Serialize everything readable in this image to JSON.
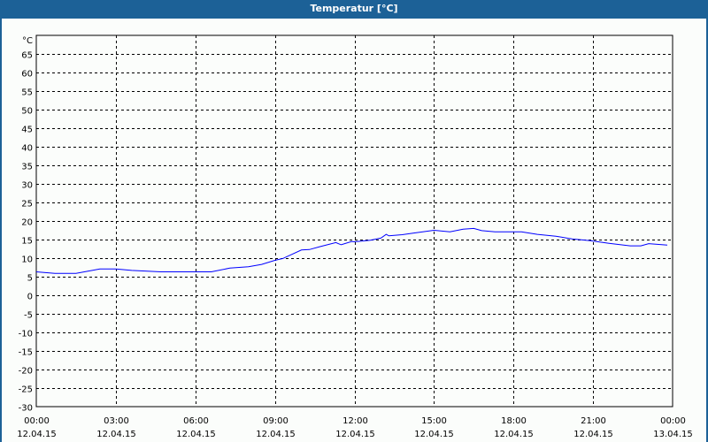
{
  "window": {
    "title": "Temperatur [°C]"
  },
  "chart_data": {
    "type": "line",
    "title": "Temperatur [°C]",
    "ylabel": "°C",
    "xlabel": "",
    "ylim": [
      -30,
      70
    ],
    "yticks": [
      65,
      60,
      55,
      50,
      45,
      40,
      35,
      30,
      25,
      20,
      15,
      10,
      5,
      0,
      -5,
      -10,
      -15,
      -20,
      -25,
      -30
    ],
    "xlim_hours": [
      0,
      24
    ],
    "xticks": [
      {
        "time": "00:00",
        "date": "12.04.15",
        "hour": 0
      },
      {
        "time": "03:00",
        "date": "12.04.15",
        "hour": 3
      },
      {
        "time": "06:00",
        "date": "12.04.15",
        "hour": 6
      },
      {
        "time": "09:00",
        "date": "12.04.15",
        "hour": 9
      },
      {
        "time": "12:00",
        "date": "12.04.15",
        "hour": 12
      },
      {
        "time": "15:00",
        "date": "12.04.15",
        "hour": 15
      },
      {
        "time": "18:00",
        "date": "12.04.15",
        "hour": 18
      },
      {
        "time": "21:00",
        "date": "12.04.15",
        "hour": 21
      },
      {
        "time": "00:00",
        "date": "13.04.15",
        "hour": 24
      }
    ],
    "grid": true,
    "line_color": "#0000ff",
    "series": [
      {
        "x_hours": [
          0,
          0.7,
          1.5,
          2.4,
          3.0,
          3.6,
          4.7,
          6.6,
          7.3,
          8.0,
          8.5,
          9.0,
          9.3,
          10.0,
          10.3,
          10.7,
          11.3,
          11.5,
          11.9,
          12.0,
          12.6,
          13.0,
          13.2,
          13.3,
          13.8,
          14.3,
          15.0,
          15.6,
          16.1,
          16.5,
          16.8,
          17.3,
          18.3,
          18.9,
          19.6,
          20.2,
          20.9,
          21.6,
          22.4,
          22.8,
          23.1,
          23.8
        ],
        "y": [
          6.3,
          5.9,
          5.9,
          7.1,
          7.1,
          6.7,
          6.3,
          6.3,
          7.3,
          7.7,
          8.3,
          9.4,
          9.9,
          12.2,
          12.3,
          13.1,
          14.2,
          13.6,
          14.5,
          14.4,
          14.8,
          15.4,
          16.4,
          16.0,
          16.3,
          16.8,
          17.5,
          17.1,
          17.8,
          18.0,
          17.4,
          17.1,
          17.1,
          16.4,
          15.9,
          15.2,
          14.7,
          14.0,
          13.3,
          13.3,
          13.9,
          13.5
        ]
      }
    ]
  }
}
